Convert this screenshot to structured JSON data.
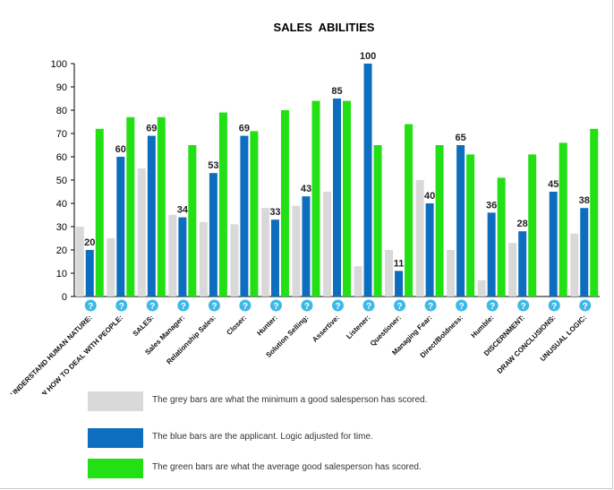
{
  "colors": {
    "grey": "#d9d9d9",
    "blue": "#0d6ebf",
    "green": "#22e014",
    "help": "#3bb9e8",
    "axis": "#000000"
  },
  "chart_data": {
    "type": "bar",
    "title": "SALES  ABILITIES",
    "ylim": [
      0,
      100
    ],
    "yticks": [
      0,
      10,
      20,
      30,
      40,
      50,
      60,
      70,
      80,
      90,
      100
    ],
    "grid": false,
    "help_marker": "?",
    "categories": [
      "UNDERSTAND HUMAN NATURE:",
      "KNOW HOW TO DEAL WITH PEOPLE:",
      "SALES:",
      "Sales Manager:",
      "Relationship Sales:",
      "Closer:",
      "Hunter:",
      "Solution Selling:",
      "Assertive:",
      "Listener:",
      "Questioner:",
      "Managing Fear:",
      "Direct/Boldness:",
      "Humble:",
      "DISCERNMENT:",
      "DRAW CONCLUSIONS:",
      "UNUSUAL LOGIC:"
    ],
    "series": [
      {
        "key": "grey",
        "values": [
          30,
          25,
          55,
          35,
          32,
          31,
          38,
          39,
          45,
          13,
          20,
          50,
          20,
          7,
          23,
          0,
          27
        ]
      },
      {
        "key": "blue",
        "values": [
          20,
          60,
          69,
          34,
          53,
          69,
          33,
          43,
          85,
          100,
          11,
          40,
          65,
          36,
          28,
          45,
          38
        ],
        "labeled": true
      },
      {
        "key": "green",
        "values": [
          72,
          77,
          77,
          65,
          79,
          71,
          80,
          84,
          84,
          65,
          74,
          65,
          61,
          51,
          61,
          66,
          72
        ]
      }
    ]
  },
  "legend": [
    {
      "key": "grey",
      "label": "The grey bars are what the minimum a good salesperson has scored."
    },
    {
      "key": "blue",
      "label": "The blue bars are the applicant. Logic adjusted for time."
    },
    {
      "key": "green",
      "label": "The green bars are what the average good salesperson has scored."
    }
  ]
}
